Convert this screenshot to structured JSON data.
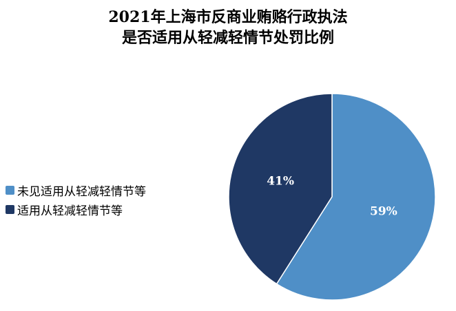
{
  "chart_data": {
    "type": "pie",
    "title": "2021年上海市反商业贿赂行政执法\n是否适用从轻减轻情节处罚比例",
    "title_lines": [
      "2021年上海市反商业贿赂行政执法",
      "是否适用从轻减轻情节处罚比例"
    ],
    "categories": [
      "未见适用从轻减轻情节等",
      "适用从轻减轻情节等"
    ],
    "values": [
      59,
      41
    ],
    "data_labels": [
      "59%",
      "41%"
    ],
    "colors": [
      "#4f8fc7",
      "#1f3864"
    ],
    "legend_position": "left"
  }
}
